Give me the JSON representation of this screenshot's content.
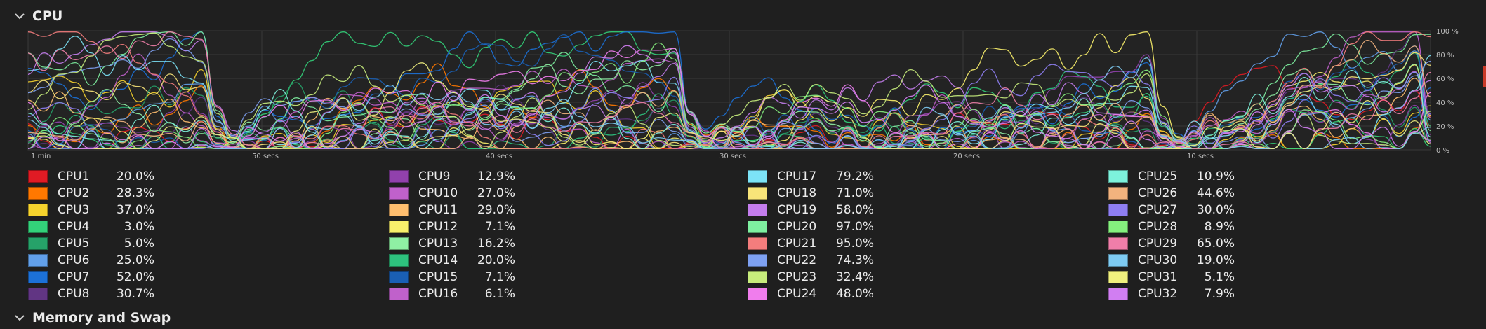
{
  "sections": {
    "cpu_title": "CPU",
    "memory_title": "Memory and Swap"
  },
  "chart_data": {
    "type": "line",
    "x_tick_labels": [
      "1 min",
      "50 secs",
      "40 secs",
      "30 secs",
      "20 secs",
      "10 secs"
    ],
    "y_tick_labels": [
      "100 %",
      "80 %",
      "60 %",
      "40 %",
      "20 %",
      "0 %"
    ],
    "ylim": [
      0,
      100
    ],
    "grid": true,
    "series_count": 32
  },
  "legend": [
    {
      "name": "CPU1",
      "value": "20.0%",
      "color": "#e01b24"
    },
    {
      "name": "CPU2",
      "value": "28.3%",
      "color": "#ff7800"
    },
    {
      "name": "CPU3",
      "value": "37.0%",
      "color": "#f6d32d"
    },
    {
      "name": "CPU4",
      "value": "3.0%",
      "color": "#33d17a"
    },
    {
      "name": "CPU5",
      "value": "5.0%",
      "color": "#26a269"
    },
    {
      "name": "CPU6",
      "value": "25.0%",
      "color": "#62a0ea"
    },
    {
      "name": "CPU7",
      "value": "52.0%",
      "color": "#1c71d8"
    },
    {
      "name": "CPU8",
      "value": "30.7%",
      "color": "#613583"
    },
    {
      "name": "CPU9",
      "value": "12.9%",
      "color": "#9141ac"
    },
    {
      "name": "CPU10",
      "value": "27.0%",
      "color": "#c061cb"
    },
    {
      "name": "CPU11",
      "value": "29.0%",
      "color": "#ffbe6f"
    },
    {
      "name": "CPU12",
      "value": "7.1%",
      "color": "#f9f06b"
    },
    {
      "name": "CPU13",
      "value": "16.2%",
      "color": "#8ff0a4"
    },
    {
      "name": "CPU14",
      "value": "20.0%",
      "color": "#2ec27e"
    },
    {
      "name": "CPU15",
      "value": "7.1%",
      "color": "#1a5fb4"
    },
    {
      "name": "CPU16",
      "value": "6.1%",
      "color": "#c061cb"
    },
    {
      "name": "CPU17",
      "value": "79.2%",
      "color": "#7ce3f7"
    },
    {
      "name": "CPU18",
      "value": "71.0%",
      "color": "#f8e479"
    },
    {
      "name": "CPU19",
      "value": "58.0%",
      "color": "#c47ded"
    },
    {
      "name": "CPU20",
      "value": "97.0%",
      "color": "#7ef0a0"
    },
    {
      "name": "CPU21",
      "value": "95.0%",
      "color": "#f47d7d"
    },
    {
      "name": "CPU22",
      "value": "74.3%",
      "color": "#7ea1f2"
    },
    {
      "name": "CPU23",
      "value": "32.4%",
      "color": "#c7ec7c"
    },
    {
      "name": "CPU24",
      "value": "48.0%",
      "color": "#f07ded"
    },
    {
      "name": "CPU25",
      "value": "10.9%",
      "color": "#7df2dc"
    },
    {
      "name": "CPU26",
      "value": "44.6%",
      "color": "#f2b37e"
    },
    {
      "name": "CPU27",
      "value": "30.0%",
      "color": "#8e7ef2"
    },
    {
      "name": "CPU28",
      "value": "8.9%",
      "color": "#85f07e"
    },
    {
      "name": "CPU29",
      "value": "65.0%",
      "color": "#f07ea9"
    },
    {
      "name": "CPU30",
      "value": "19.0%",
      "color": "#7ecbf2"
    },
    {
      "name": "CPU31",
      "value": "5.1%",
      "color": "#f0f07e"
    },
    {
      "name": "CPU32",
      "value": "7.9%",
      "color": "#d17ef2"
    }
  ],
  "icons": {
    "section_toggle": "chevron-down-icon"
  }
}
